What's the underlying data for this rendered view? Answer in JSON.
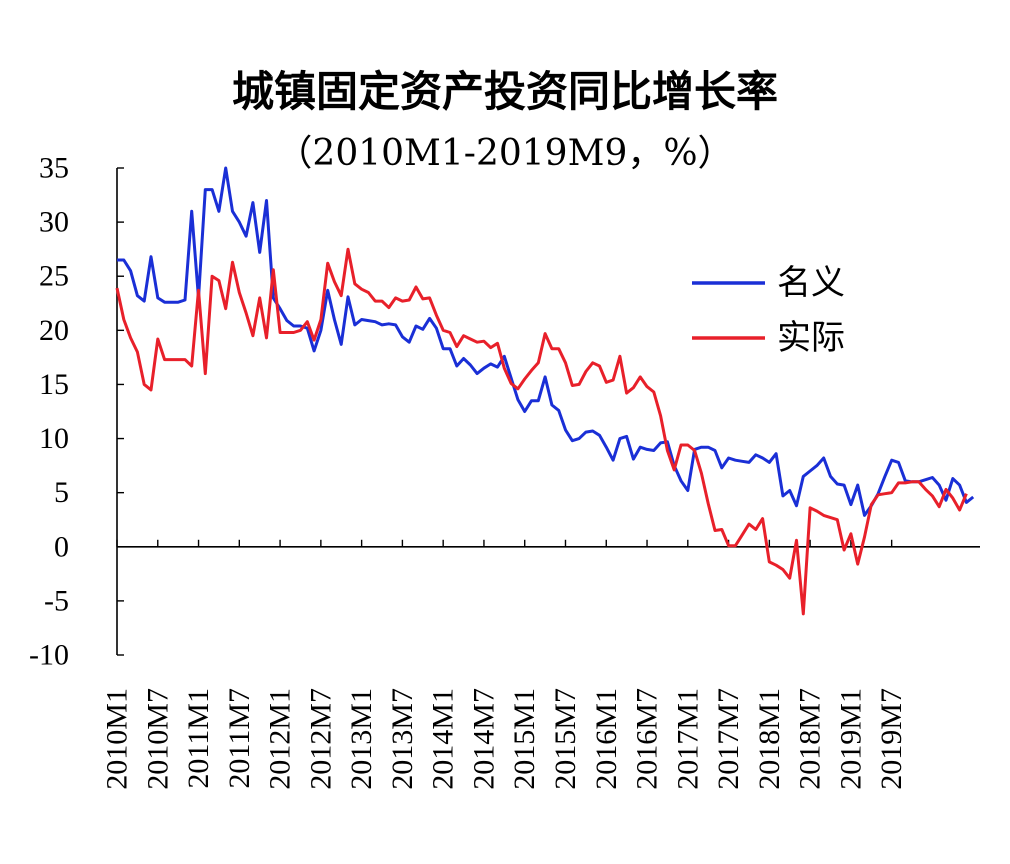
{
  "chart_data": {
    "type": "line",
    "title": "城镇固定资产投资同比增长率",
    "subtitle": "（2010M1-2019M9，%）",
    "ylim": [
      -10,
      35
    ],
    "yticks": [
      "35",
      "30",
      "25",
      "20",
      "15",
      "10",
      "5",
      "0",
      "-5",
      "-10"
    ],
    "xtick_labels": [
      "2010M1",
      "2010M7",
      "2011M1",
      "2011M7",
      "2012M1",
      "2012M7",
      "2013M1",
      "2013M7",
      "2014M1",
      "2014M7",
      "2015M1",
      "2015M7",
      "2016M1",
      "2016M7",
      "2017M1",
      "2017M7",
      "2018M1",
      "2018M7",
      "2019M1",
      "2019M7"
    ],
    "legend_position": "right",
    "series": [
      {
        "name": "名义",
        "color": "#1a2fd6",
        "values": [
          26.5,
          26.5,
          25.5,
          23.2,
          22.7,
          26.8,
          23,
          22.6,
          22.6,
          22.6,
          22.8,
          31,
          23,
          33,
          33,
          31,
          35,
          31,
          30,
          28.7,
          31.8,
          27.2,
          32,
          23,
          22,
          20.9,
          20.4,
          20.4,
          20.2,
          18.1,
          20,
          23.7,
          21,
          18.7,
          23.1,
          20.5,
          21,
          20.9,
          20.8,
          20.5,
          20.6,
          20.5,
          19.4,
          18.9,
          20.4,
          20.1,
          21.1,
          20.2,
          18.3,
          18.3,
          16.7,
          17.4,
          16.8,
          16,
          16.5,
          16.9,
          16.6,
          17.6,
          15.6,
          13.6,
          12.5,
          13.5,
          13.5,
          15.7,
          13.1,
          12.6,
          10.8,
          9.8,
          10,
          10.6,
          10.7,
          10.3,
          9.2,
          8,
          10,
          10.2,
          8.1,
          9.2,
          9,
          8.9,
          9.6,
          9.7,
          7.5,
          6.1,
          5.2,
          9,
          9.2,
          9.2,
          8.9,
          7.3,
          8.2,
          8,
          7.9,
          7.8,
          8.5,
          8.2,
          7.8,
          8.6,
          4.7,
          5.2,
          3.8,
          6.5,
          7,
          7.5,
          8.2,
          6.5,
          5.8,
          5.7,
          3.9,
          5.7,
          2.9,
          3.8,
          4.9,
          6.5,
          8,
          7.8,
          6.1,
          6,
          6,
          6.2,
          6.4,
          5.7,
          4.3,
          6.3,
          5.7,
          4.1,
          4.6
        ]
      },
      {
        "name": "实际",
        "color": "#e8202a",
        "values": [
          23.9,
          21,
          19.3,
          18,
          15,
          14.5,
          19.2,
          17.3,
          17.3,
          17.3,
          17.3,
          16.7,
          23.7,
          16,
          25,
          24.6,
          22,
          26.3,
          23.5,
          21.6,
          19.5,
          23,
          19.3,
          25.6,
          19.8,
          19.8,
          19.8,
          20,
          20.8,
          19.1,
          21,
          26.2,
          24.5,
          23.2,
          27.5,
          24.3,
          23.8,
          23.5,
          22.7,
          22.7,
          22.1,
          23,
          22.7,
          22.8,
          24,
          22.9,
          23,
          21.4,
          20,
          19.8,
          18.5,
          19.5,
          19.2,
          18.9,
          19,
          18.4,
          18.8,
          16.5,
          15.1,
          14.6,
          15.5,
          16.3,
          17,
          19.7,
          18.3,
          18.3,
          17,
          14.9,
          15,
          16.2,
          17,
          16.7,
          15.2,
          15.4,
          17.6,
          14.2,
          14.7,
          15.7,
          14.8,
          14.3,
          12.1,
          8.9,
          7.1,
          9.4,
          9.4,
          8.9,
          6.8,
          4,
          1.5,
          1.6,
          0.1,
          0.1,
          1.1,
          2.1,
          1.6,
          2.6,
          -1.4,
          -1.7,
          -2.1,
          -2.9,
          0.6,
          -6.2,
          3.6,
          3.3,
          2.9,
          2.7,
          2.5,
          -0.3,
          1.2,
          -1.6,
          0.9,
          3.9,
          4.8,
          4.9,
          5,
          5.9,
          5.9,
          6,
          6,
          5.3,
          4.7,
          3.7,
          5.3,
          4.5,
          3.4,
          4.9
        ]
      }
    ]
  }
}
